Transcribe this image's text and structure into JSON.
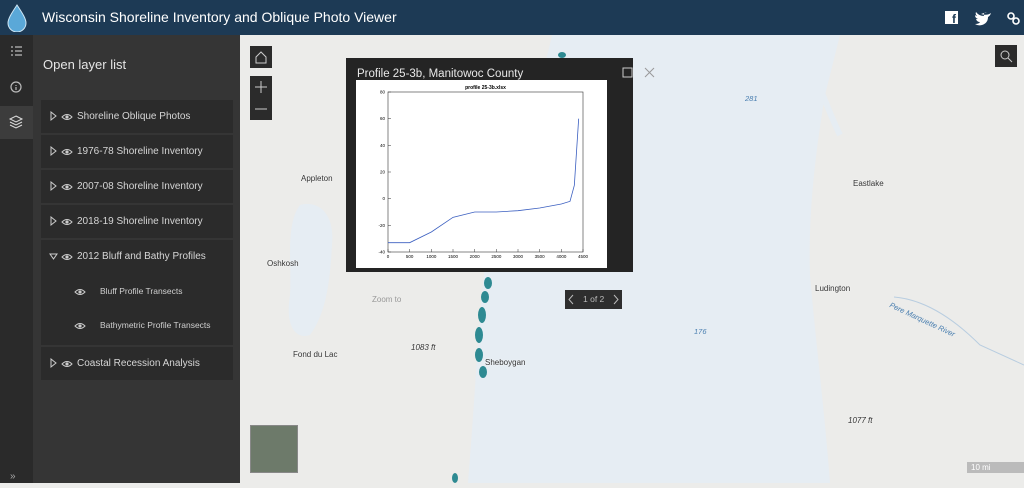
{
  "header": {
    "title": "Wisconsin Shoreline Inventory and Oblique Photo Viewer"
  },
  "sidebar": {
    "title": "Open layer list",
    "layers": [
      {
        "label": "Shoreline Oblique Photos"
      },
      {
        "label": "1976-78 Shoreline Inventory"
      },
      {
        "label": "2007-08 Shoreline Inventory"
      },
      {
        "label": "2018-19 Shoreline Inventory"
      },
      {
        "label": "2012 Bluff and Bathy Profiles",
        "sublayers": [
          "Bluff Profile Transects",
          "Bathymetric Profile Transects"
        ]
      },
      {
        "label": "Coastal Recession Analysis"
      }
    ]
  },
  "popup": {
    "title": "Profile 25-3b, Manitowoc County",
    "pager": "1 of 2",
    "chart": {
      "type": "line",
      "title": "profile 25-3b.xlsx",
      "x": [
        0,
        500,
        1000,
        1500,
        2000,
        2500,
        3000,
        3500,
        4000,
        4200,
        4300,
        4400
      ],
      "values": [
        -33,
        -33,
        -25,
        -14,
        -10,
        -10,
        -9,
        -7,
        -4,
        -2,
        10,
        60
      ],
      "color": "#3b5fc0",
      "xlim": [
        0,
        4500
      ],
      "ylim": [
        -40,
        80
      ],
      "xticks": [
        0,
        500,
        1000,
        1500,
        2000,
        2500,
        3000,
        3500,
        4000,
        4500
      ],
      "yticks": [
        -40,
        -20,
        0,
        20,
        40,
        60,
        80
      ]
    }
  },
  "map": {
    "labels": [
      "281",
      "Appleton",
      "Eastlake",
      "Oshkosh",
      "Zoom to",
      "Ludington",
      "Pere Marquette River",
      "176",
      "Fond du Lac",
      "1083 ft",
      "Sheboygan",
      "1077 ft",
      "10 mi"
    ]
  }
}
